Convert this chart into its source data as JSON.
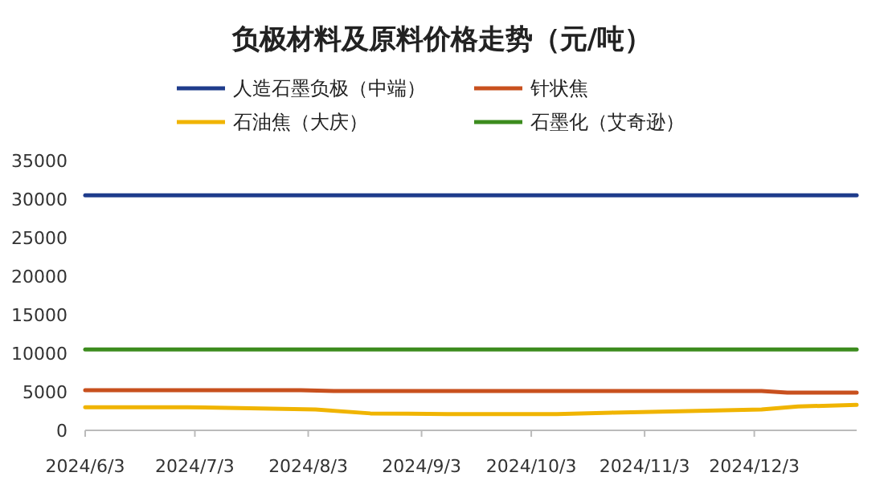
{
  "chart_data": {
    "type": "line",
    "title": "负极材料及原料价格走势（元/吨）",
    "legend": "top",
    "grid": false,
    "xlim": [
      "2024-06-03",
      "2024-12-31"
    ],
    "xticks": [
      {
        "value": "2024-06-03",
        "label": "2024/6/3"
      },
      {
        "value": "2024-07-03",
        "label": "2024/7/3"
      },
      {
        "value": "2024-08-03",
        "label": "2024/8/3"
      },
      {
        "value": "2024-09-03",
        "label": "2024/9/3"
      },
      {
        "value": "2024-10-03",
        "label": "2024/10/3"
      },
      {
        "value": "2024-11-03",
        "label": "2024/11/3"
      },
      {
        "value": "2024-12-03",
        "label": "2024/12/3"
      }
    ],
    "ylim": [
      0,
      35000
    ],
    "yticks": [
      0,
      5000,
      10000,
      15000,
      20000,
      25000,
      30000,
      35000
    ],
    "series": [
      {
        "name": "人造石墨负极（中端）",
        "color": "#1f3c8c",
        "x": [
          "2024-06-03",
          "2024-12-31"
        ],
        "values": [
          30500,
          30500
        ]
      },
      {
        "name": "针状焦",
        "color": "#c8501e",
        "x": [
          "2024-06-03",
          "2024-08-01",
          "2024-08-10",
          "2024-12-05",
          "2024-12-12",
          "2024-12-31"
        ],
        "values": [
          5200,
          5200,
          5100,
          5100,
          4900,
          4900
        ]
      },
      {
        "name": "石油焦（大庆）",
        "color": "#f0b400",
        "x": [
          "2024-06-03",
          "2024-07-01",
          "2024-07-15",
          "2024-08-05",
          "2024-08-20",
          "2024-09-10",
          "2024-10-10",
          "2024-10-25",
          "2024-11-15",
          "2024-12-05",
          "2024-12-15",
          "2024-12-31"
        ],
        "values": [
          3000,
          3000,
          2900,
          2700,
          2200,
          2100,
          2100,
          2300,
          2500,
          2700,
          3100,
          3300
        ]
      },
      {
        "name": "石墨化（艾奇逊）",
        "color": "#3c8c1e",
        "x": [
          "2024-06-03",
          "2024-12-31"
        ],
        "values": [
          10500,
          10500
        ]
      }
    ]
  }
}
